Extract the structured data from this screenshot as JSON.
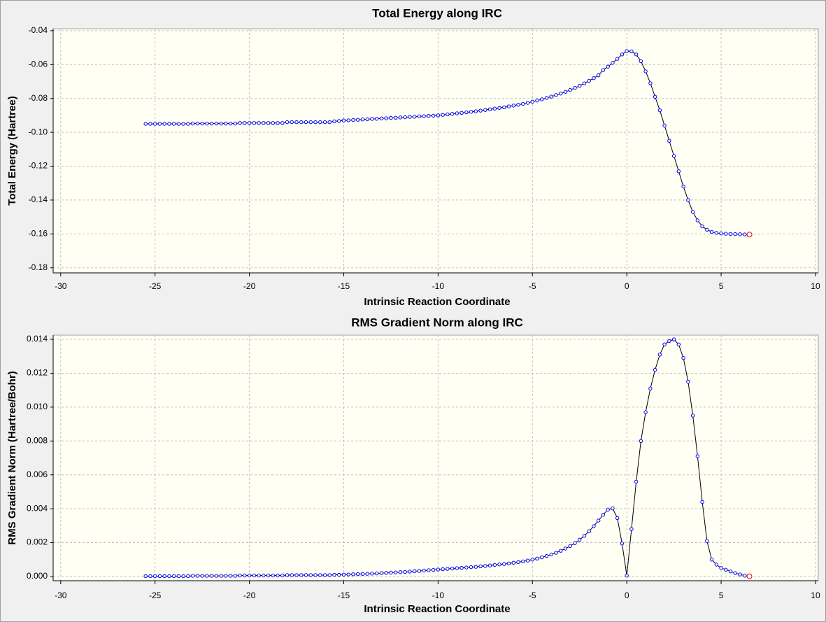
{
  "chart_data": [
    {
      "type": "line",
      "title": "Total Energy along IRC",
      "xlabel": "Intrinsic Reaction Coordinate",
      "ylabel": "Total Energy (Hartree)",
      "xlim": [
        -30.4,
        10.15
      ],
      "xticks": [
        -30,
        -25,
        -20,
        -15,
        -10,
        -5,
        0,
        5,
        10
      ],
      "ylim": [
        -0.183,
        -0.0388
      ],
      "yticks": [
        -0.04,
        -0.06,
        -0.08,
        {
          "value": -0.1,
          "label": "-0.10"
        },
        -0.12,
        -0.14,
        -0.16,
        -0.18
      ],
      "grid": true,
      "line_color": "#000000",
      "marker_color": "#0000ff",
      "highlight_color": "#dd0000",
      "x": [
        -25.5,
        -25.25,
        -25,
        -24.75,
        -24.5,
        -24.25,
        -24,
        -23.75,
        -23.5,
        -23.25,
        -23,
        -22.75,
        -22.5,
        -22.25,
        -22,
        -21.75,
        -21.5,
        -21.25,
        -21,
        -20.75,
        -20.5,
        -20.25,
        -20,
        -19.75,
        -19.5,
        -19.25,
        -19,
        -18.75,
        -18.5,
        -18.25,
        -18,
        -17.75,
        -17.5,
        -17.25,
        -17,
        -16.75,
        -16.5,
        -16.25,
        -16,
        -15.75,
        -15.5,
        -15.25,
        -15,
        -14.75,
        -14.5,
        -14.25,
        -14,
        -13.75,
        -13.5,
        -13.25,
        -13,
        -12.75,
        -12.5,
        -12.25,
        -12,
        -11.75,
        -11.5,
        -11.25,
        -11,
        -10.75,
        -10.5,
        -10.25,
        -10,
        -9.75,
        -9.5,
        -9.25,
        -9,
        -8.75,
        -8.5,
        -8.25,
        -8,
        -7.75,
        -7.5,
        -7.25,
        -7,
        -6.75,
        -6.5,
        -6.25,
        -6,
        -5.75,
        -5.5,
        -5.25,
        -5,
        -4.75,
        -4.5,
        -4.25,
        -4,
        -3.75,
        -3.5,
        -3.25,
        -3,
        -2.75,
        -2.5,
        -2.25,
        -2,
        -1.75,
        -1.5,
        -1.25,
        -1,
        -0.75,
        -0.5,
        -0.25,
        0,
        0.25,
        0.5,
        0.75,
        1,
        1.25,
        1.5,
        1.75,
        2,
        2.25,
        2.5,
        2.75,
        3,
        3.25,
        3.5,
        3.75,
        4,
        4.25,
        4.5,
        4.75,
        5,
        5.25,
        5.5,
        5.75,
        6,
        6.25,
        6.5
      ],
      "values": [
        -0.095,
        -0.095,
        -0.095,
        -0.095,
        -0.095,
        -0.095,
        -0.095,
        -0.095,
        -0.095,
        -0.095,
        -0.0948,
        -0.0948,
        -0.0948,
        -0.0948,
        -0.0948,
        -0.0948,
        -0.0948,
        -0.0948,
        -0.0948,
        -0.0948,
        -0.0945,
        -0.0945,
        -0.0945,
        -0.0945,
        -0.0945,
        -0.0945,
        -0.0945,
        -0.0945,
        -0.0945,
        -0.0945,
        -0.094,
        -0.094,
        -0.094,
        -0.094,
        -0.094,
        -0.094,
        -0.094,
        -0.094,
        -0.094,
        -0.094,
        -0.0935,
        -0.0933,
        -0.093,
        -0.0929,
        -0.0927,
        -0.0926,
        -0.0924,
        -0.0923,
        -0.0921,
        -0.092,
        -0.0918,
        -0.0917,
        -0.0915,
        -0.0914,
        -0.0912,
        -0.0911,
        -0.0909,
        -0.0908,
        -0.0906,
        -0.0905,
        -0.0903,
        -0.0902,
        -0.09,
        -0.0897,
        -0.0894,
        -0.0891,
        -0.0888,
        -0.0885,
        -0.0882,
        -0.0879,
        -0.0876,
        -0.0872,
        -0.0868,
        -0.0864,
        -0.086,
        -0.0856,
        -0.0852,
        -0.0847,
        -0.0842,
        -0.0837,
        -0.0832,
        -0.0826,
        -0.0819,
        -0.0812,
        -0.0805,
        -0.0797,
        -0.0789,
        -0.078,
        -0.0771,
        -0.0761,
        -0.075,
        -0.0738,
        -0.0725,
        -0.0711,
        -0.0696,
        -0.068,
        -0.0663,
        -0.0632,
        -0.0612,
        -0.059,
        -0.0566,
        -0.054,
        -0.052,
        -0.0522,
        -0.054,
        -0.058,
        -0.064,
        -0.071,
        -0.079,
        -0.087,
        -0.096,
        -0.105,
        -0.114,
        -0.123,
        -0.132,
        -0.14,
        -0.147,
        -0.152,
        -0.1555,
        -0.1575,
        -0.1588,
        -0.1594,
        -0.1597,
        -0.1599,
        -0.16,
        -0.1601,
        -0.1602,
        -0.1603,
        -0.1604
      ]
    },
    {
      "type": "line",
      "title": "RMS Gradient Norm along IRC",
      "xlabel": "Intrinsic Reaction Coordinate",
      "ylabel": "RMS Gradient Norm (Hartree/Bohr)",
      "xlim": [
        -30.4,
        10.15
      ],
      "xticks": [
        -30,
        -25,
        -20,
        -15,
        -10,
        -5,
        0,
        5,
        10
      ],
      "ylim": [
        -0.00025,
        0.01425
      ],
      "yticks": [
        {
          "value": 0,
          "label": "0.000"
        },
        0.002,
        0.004,
        0.006,
        0.008,
        {
          "value": 0.01,
          "label": "0.010"
        },
        0.012,
        0.014
      ],
      "grid": true,
      "line_color": "#000000",
      "marker_color": "#0000ff",
      "highlight_color": "#dd0000",
      "x": [
        -25.5,
        -25.25,
        -25,
        -24.75,
        -24.5,
        -24.25,
        -24,
        -23.75,
        -23.5,
        -23.25,
        -23,
        -22.75,
        -22.5,
        -22.25,
        -22,
        -21.75,
        -21.5,
        -21.25,
        -21,
        -20.75,
        -20.5,
        -20.25,
        -20,
        -19.75,
        -19.5,
        -19.25,
        -19,
        -18.75,
        -18.5,
        -18.25,
        -18,
        -17.75,
        -17.5,
        -17.25,
        -17,
        -16.75,
        -16.5,
        -16.25,
        -16,
        -15.75,
        -15.5,
        -15.25,
        -15,
        -14.75,
        -14.5,
        -14.25,
        -14,
        -13.75,
        -13.5,
        -13.25,
        -13,
        -12.75,
        -12.5,
        -12.25,
        -12,
        -11.75,
        -11.5,
        -11.25,
        -11,
        -10.75,
        -10.5,
        -10.25,
        -10,
        -9.75,
        -9.5,
        -9.25,
        -9,
        -8.75,
        -8.5,
        -8.25,
        -8,
        -7.75,
        -7.5,
        -7.25,
        -7,
        -6.75,
        -6.5,
        -6.25,
        -6,
        -5.75,
        -5.5,
        -5.25,
        -5,
        -4.75,
        -4.5,
        -4.25,
        -4,
        -3.75,
        -3.5,
        -3.25,
        -3,
        -2.75,
        -2.5,
        -2.25,
        -2,
        -1.75,
        -1.5,
        -1.25,
        -1,
        -0.75,
        -0.5,
        -0.25,
        0,
        0.25,
        0.5,
        0.75,
        1,
        1.25,
        1.5,
        1.75,
        2,
        2.25,
        2.5,
        2.75,
        3,
        3.25,
        3.5,
        3.75,
        4,
        4.25,
        4.5,
        4.75,
        5,
        5.25,
        5.5,
        5.75,
        6,
        6.25,
        6.5
      ],
      "values": [
        2e-05,
        2e-05,
        2e-05,
        2e-05,
        2e-05,
        2e-05,
        2e-05,
        2e-05,
        2e-05,
        2e-05,
        4e-05,
        4e-05,
        4e-05,
        4e-05,
        4e-05,
        4e-05,
        4e-05,
        4e-05,
        4e-05,
        4e-05,
        6e-05,
        6e-05,
        6e-05,
        6e-05,
        6e-05,
        6e-05,
        6e-05,
        6e-05,
        6e-05,
        6e-05,
        8e-05,
        8e-05,
        8e-05,
        8e-05,
        8e-05,
        8e-05,
        8e-05,
        8e-05,
        8e-05,
        8e-05,
        0.0001,
        0.0001,
        0.00011,
        0.00012,
        0.00013,
        0.00014,
        0.00015,
        0.00016,
        0.00017,
        0.00018,
        0.0002,
        0.00021,
        0.00023,
        0.00024,
        0.00026,
        0.00027,
        0.00029,
        0.00031,
        0.00033,
        0.00035,
        0.00037,
        0.00039,
        0.00041,
        0.00043,
        0.00045,
        0.00047,
        0.00049,
        0.00051,
        0.00053,
        0.00055,
        0.00057,
        0.0006,
        0.00062,
        0.00065,
        0.00068,
        0.00071,
        0.00074,
        0.00077,
        0.00081,
        0.00085,
        0.00089,
        0.00094,
        0.001,
        0.00106,
        0.00113,
        0.00121,
        0.0013,
        0.0014,
        0.00152,
        0.00165,
        0.0018,
        0.00197,
        0.00217,
        0.0024,
        0.00267,
        0.00297,
        0.0033,
        0.00365,
        0.00395,
        0.00402,
        0.00345,
        0.00195,
        5e-05,
        0.0028,
        0.0056,
        0.008,
        0.0097,
        0.0111,
        0.0122,
        0.0131,
        0.0137,
        0.0139,
        0.014,
        0.0137,
        0.0129,
        0.0115,
        0.0095,
        0.0071,
        0.0044,
        0.0021,
        0.001,
        0.0007,
        0.0005,
        0.0004,
        0.0003,
        0.0002,
        0.00012,
        5e-05,
        1e-05
      ]
    }
  ]
}
